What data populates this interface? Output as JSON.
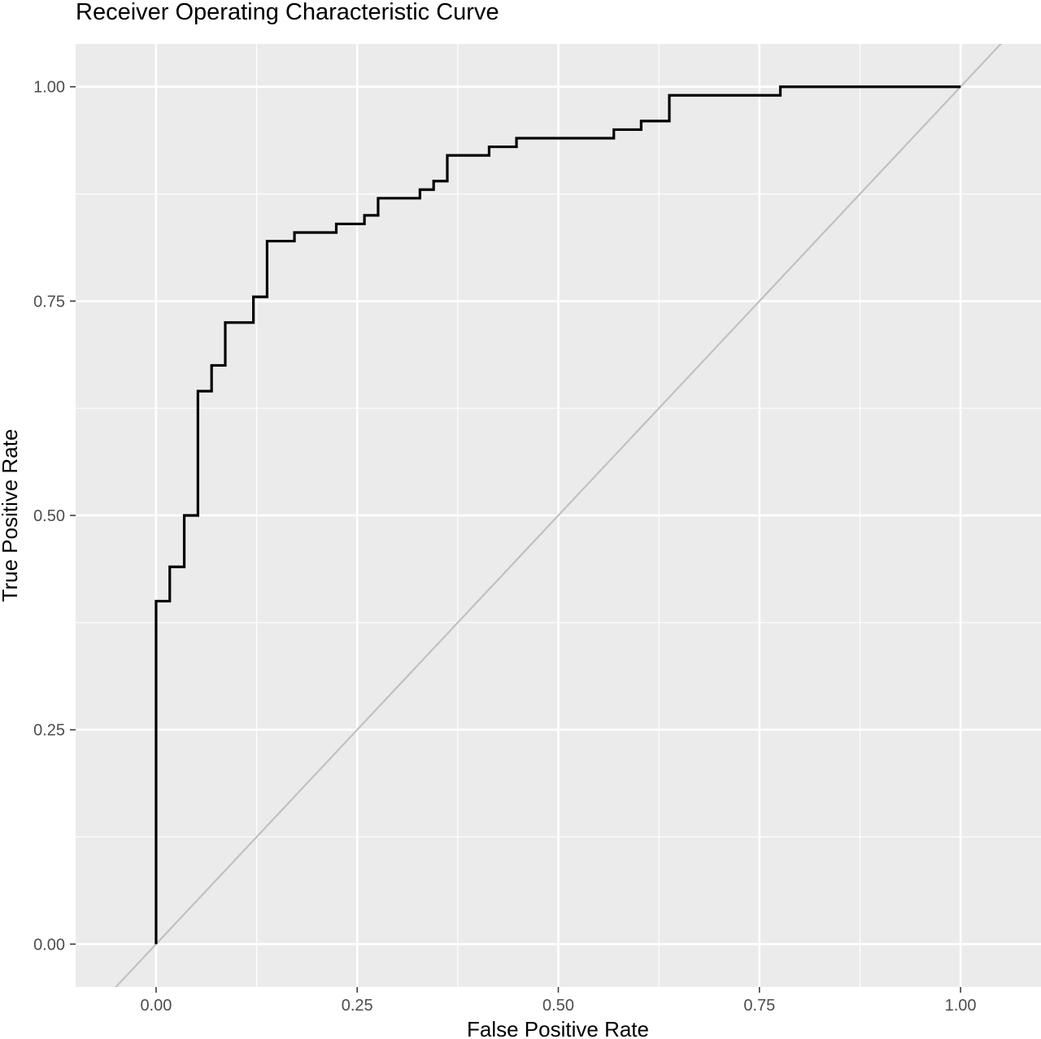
{
  "chart_data": {
    "type": "line",
    "title": "Receiver Operating Characteristic Curve",
    "xlabel": "False Positive Rate",
    "ylabel": "True Positive Rate",
    "xlim": [
      -0.1,
      1.1
    ],
    "ylim": [
      -0.05,
      1.05
    ],
    "x_ticks": [
      0.0,
      0.25,
      0.5,
      0.75,
      1.0
    ],
    "x_tick_labels": [
      "0.00",
      "0.25",
      "0.50",
      "0.75",
      "1.00"
    ],
    "y_ticks": [
      0.0,
      0.25,
      0.5,
      0.75,
      1.0
    ],
    "y_tick_labels": [
      "0.00",
      "0.25",
      "0.50",
      "0.75",
      "1.00"
    ],
    "grid": true,
    "panel_background": "#ebebeb",
    "grid_color": "#ffffff",
    "series": [
      {
        "line_color": "#000000",
        "step": true,
        "points": [
          [
            0.0,
            0.0
          ],
          [
            0.0,
            0.4
          ],
          [
            0.017,
            0.4
          ],
          [
            0.017,
            0.44
          ],
          [
            0.035,
            0.44
          ],
          [
            0.035,
            0.5
          ],
          [
            0.052,
            0.5
          ],
          [
            0.052,
            0.645
          ],
          [
            0.069,
            0.645
          ],
          [
            0.069,
            0.675
          ],
          [
            0.086,
            0.675
          ],
          [
            0.086,
            0.725
          ],
          [
            0.121,
            0.725
          ],
          [
            0.121,
            0.755
          ],
          [
            0.138,
            0.755
          ],
          [
            0.138,
            0.82
          ],
          [
            0.172,
            0.82
          ],
          [
            0.172,
            0.83
          ],
          [
            0.224,
            0.83
          ],
          [
            0.224,
            0.84
          ],
          [
            0.259,
            0.84
          ],
          [
            0.259,
            0.85
          ],
          [
            0.276,
            0.85
          ],
          [
            0.276,
            0.87
          ],
          [
            0.328,
            0.87
          ],
          [
            0.328,
            0.88
          ],
          [
            0.345,
            0.88
          ],
          [
            0.345,
            0.89
          ],
          [
            0.362,
            0.89
          ],
          [
            0.362,
            0.92
          ],
          [
            0.414,
            0.92
          ],
          [
            0.414,
            0.93
          ],
          [
            0.448,
            0.93
          ],
          [
            0.448,
            0.94
          ],
          [
            0.569,
            0.94
          ],
          [
            0.569,
            0.95
          ],
          [
            0.603,
            0.95
          ],
          [
            0.603,
            0.96
          ],
          [
            0.638,
            0.96
          ],
          [
            0.638,
            0.99
          ],
          [
            0.776,
            0.99
          ],
          [
            0.776,
            1.0
          ],
          [
            1.0,
            1.0
          ]
        ]
      },
      {
        "line_color": "#c0c0c0",
        "reference_line": true,
        "slope": 1,
        "intercept": 0
      }
    ]
  }
}
